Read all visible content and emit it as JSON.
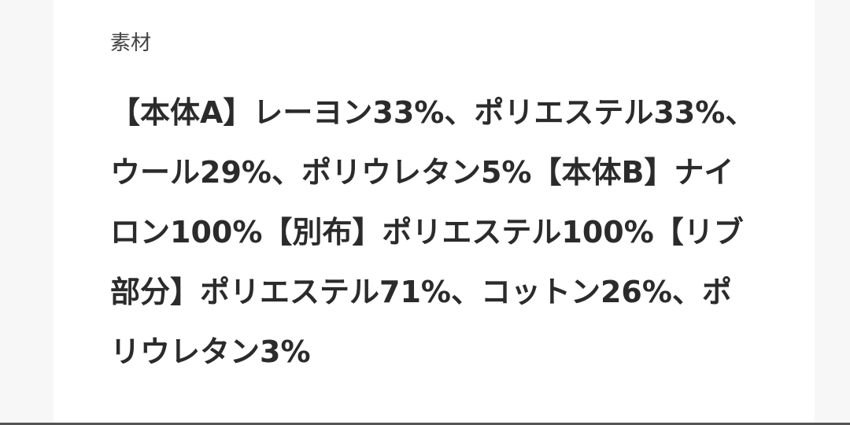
{
  "section": {
    "label": "素材",
    "material_text": "【本体A】レーヨン33%、ポリエステル33%、ウール29%、ポリウレタン5%【本体B】ナイロン100%【別布】ポリエステル100%【リブ部分】ポリエステル71%、コットン26%、ポリウレタン3%"
  }
}
